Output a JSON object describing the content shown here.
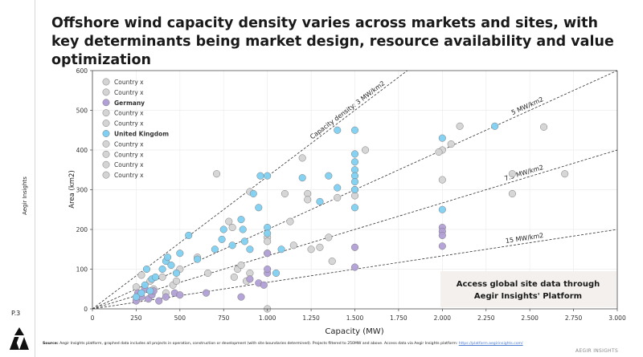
{
  "title": "Offshore wind capacity density varies across markets and sites, with key determinants being market design, resource availability and value optimization",
  "sidebar": {
    "brand_vertical": "Aegir Insights",
    "page_number": "P.3"
  },
  "footer": {
    "source_label": "Source:",
    "source_text": "Aegir Insights platform, graphed data includes all projects in operation, construction or development (with site boundaries determined). Projects filtered to 250MW and above.  Access data via Aegir Insights platform:",
    "source_link": "https://platform.aegirinsights.com/",
    "brand": "AEGIR INSIGHTS"
  },
  "callout": {
    "line1": "Access global site data through",
    "line2": "Aegir Insights' Platform"
  },
  "colors": {
    "uk": "#7fd0f2",
    "germany": "#b19fd6",
    "other": "#d4d4d4",
    "stroke": "#7a7a7a"
  },
  "chart_data": {
    "type": "scatter",
    "title": "",
    "xlabel": "Capacity (MW)",
    "ylabel": "Area (km2)",
    "xlim": [
      0,
      3000
    ],
    "ylim": [
      0,
      600
    ],
    "xticks": [
      0,
      250,
      500,
      750,
      1000,
      1250,
      1500,
      1750,
      2000,
      2250,
      2500,
      2750,
      3000
    ],
    "xtick_labels": [
      "0",
      "250",
      "500",
      "750",
      "1.000",
      "1.250",
      "1.500",
      "1.750",
      "2.000",
      "2.250",
      "2.500",
      "2.750",
      "3.000"
    ],
    "yticks": [
      0,
      100,
      200,
      300,
      400,
      500,
      600
    ],
    "grid": true,
    "legend_placement": "top-left",
    "legend": [
      {
        "label": "Country x",
        "series": "other",
        "bold": false
      },
      {
        "label": "Country x",
        "series": "other",
        "bold": false
      },
      {
        "label": "Germany",
        "series": "germany",
        "bold": true
      },
      {
        "label": "Country x",
        "series": "other",
        "bold": false
      },
      {
        "label": "Country x",
        "series": "other",
        "bold": false
      },
      {
        "label": "United Kingdom",
        "series": "uk",
        "bold": true
      },
      {
        "label": "Country x",
        "series": "other",
        "bold": false
      },
      {
        "label": "Country x",
        "series": "other",
        "bold": false
      },
      {
        "label": "Country x",
        "series": "other",
        "bold": false
      },
      {
        "label": "Country x",
        "series": "other",
        "bold": false
      }
    ],
    "reference_lines": [
      {
        "density": 3,
        "label": "Capacity density: 3 MW/km2"
      },
      {
        "density": 5,
        "label": "5 MW/km2"
      },
      {
        "density": 7.5,
        "label": "7.5 MW/km2"
      },
      {
        "density": 15,
        "label": "15 MW/km2"
      }
    ],
    "series": [
      {
        "name": "Country x",
        "key": "other",
        "points": [
          [
            250,
            55
          ],
          [
            280,
            85
          ],
          [
            260,
            30
          ],
          [
            330,
            70
          ],
          [
            350,
            50
          ],
          [
            400,
            80
          ],
          [
            420,
            40
          ],
          [
            460,
            60
          ],
          [
            480,
            70
          ],
          [
            500,
            100
          ],
          [
            600,
            130
          ],
          [
            660,
            90
          ],
          [
            710,
            340
          ],
          [
            780,
            220
          ],
          [
            800,
            205
          ],
          [
            810,
            80
          ],
          [
            830,
            100
          ],
          [
            880,
            70
          ],
          [
            900,
            295
          ],
          [
            1000,
            180
          ],
          [
            1000,
            170
          ],
          [
            1000,
            140
          ],
          [
            1000,
            0
          ],
          [
            1100,
            290
          ],
          [
            1130,
            220
          ],
          [
            1230,
            290
          ],
          [
            1230,
            275
          ],
          [
            1300,
            155
          ],
          [
            1400,
            280
          ],
          [
            1500,
            300
          ],
          [
            1500,
            285
          ],
          [
            1560,
            400
          ],
          [
            2000,
            400
          ],
          [
            1980,
            395
          ],
          [
            2000,
            325
          ],
          [
            2050,
            415
          ],
          [
            2100,
            460
          ],
          [
            2400,
            340
          ],
          [
            2400,
            290
          ],
          [
            2580,
            458
          ],
          [
            2700,
            340
          ],
          [
            1150,
            160
          ],
          [
            1250,
            150
          ],
          [
            1350,
            180
          ],
          [
            1370,
            120
          ],
          [
            850,
            110
          ],
          [
            900,
            90
          ],
          [
            1200,
            380
          ]
        ]
      },
      {
        "name": "Germany",
        "key": "germany",
        "points": [
          [
            250,
            20
          ],
          [
            260,
            40
          ],
          [
            280,
            30
          ],
          [
            300,
            50
          ],
          [
            320,
            25
          ],
          [
            340,
            35
          ],
          [
            350,
            45
          ],
          [
            380,
            20
          ],
          [
            420,
            30
          ],
          [
            470,
            40
          ],
          [
            500,
            35
          ],
          [
            650,
            40
          ],
          [
            900,
            75
          ],
          [
            950,
            65
          ],
          [
            980,
            60
          ],
          [
            1000,
            90
          ],
          [
            1000,
            100
          ],
          [
            1000,
            140
          ],
          [
            850,
            30
          ],
          [
            1500,
            155
          ],
          [
            1500,
            105
          ],
          [
            2000,
            205
          ],
          [
            2000,
            195
          ],
          [
            2000,
            185
          ],
          [
            2000,
            158
          ]
        ]
      },
      {
        "name": "United Kingdom",
        "key": "uk",
        "points": [
          [
            250,
            30
          ],
          [
            280,
            40
          ],
          [
            300,
            60
          ],
          [
            310,
            100
          ],
          [
            330,
            45
          ],
          [
            340,
            75
          ],
          [
            360,
            80
          ],
          [
            400,
            100
          ],
          [
            420,
            120
          ],
          [
            430,
            130
          ],
          [
            450,
            110
          ],
          [
            480,
            90
          ],
          [
            500,
            140
          ],
          [
            550,
            185
          ],
          [
            600,
            125
          ],
          [
            700,
            150
          ],
          [
            740,
            175
          ],
          [
            750,
            200
          ],
          [
            800,
            160
          ],
          [
            850,
            225
          ],
          [
            860,
            200
          ],
          [
            870,
            170
          ],
          [
            900,
            150
          ],
          [
            920,
            290
          ],
          [
            950,
            255
          ],
          [
            960,
            335
          ],
          [
            1000,
            335
          ],
          [
            1000,
            205
          ],
          [
            1000,
            190
          ],
          [
            1050,
            90
          ],
          [
            1080,
            150
          ],
          [
            1200,
            330
          ],
          [
            1300,
            270
          ],
          [
            1350,
            335
          ],
          [
            1400,
            450
          ],
          [
            1400,
            305
          ],
          [
            1500,
            450
          ],
          [
            1500,
            390
          ],
          [
            1500,
            370
          ],
          [
            1500,
            350
          ],
          [
            1500,
            335
          ],
          [
            1500,
            320
          ],
          [
            1500,
            300
          ],
          [
            1500,
            255
          ],
          [
            2000,
            430
          ],
          [
            2000,
            250
          ],
          [
            2300,
            460
          ]
        ]
      }
    ]
  }
}
